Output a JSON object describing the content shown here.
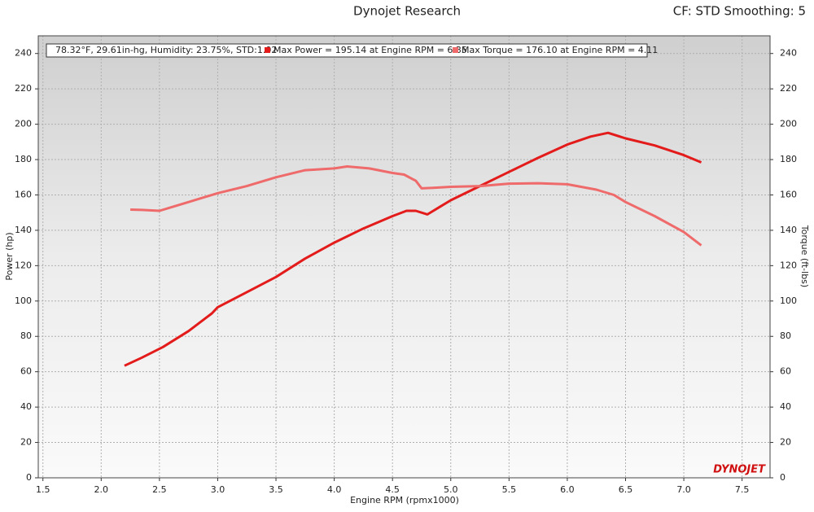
{
  "chart_data": {
    "type": "line",
    "title": "Dynojet Research",
    "subtitle": "CF: STD Smoothing: 5",
    "annotation": "78.32°F, 29.61in-hg, Humidity: 23.75%, STD:1.02",
    "logo": "DYNOJET",
    "x_label": "Engine RPM (rpmx1000)",
    "y_label": "Power (hp)",
    "y2_label": "Torque (ft-lbs)",
    "xlim": [
      1.46,
      7.74
    ],
    "xticks": [
      1.5,
      {
        "value": 2,
        "label": "2.0"
      },
      2.5,
      {
        "value": 3,
        "label": "3.0"
      },
      3.5,
      {
        "value": 4,
        "label": "4.0"
      },
      4.5,
      {
        "value": 5,
        "label": "5.0"
      },
      5.5,
      {
        "value": 6,
        "label": "6.0"
      },
      6.5,
      {
        "value": 7,
        "label": "7.0"
      },
      7.5
    ],
    "ylim": [
      0,
      250
    ],
    "yticks": [
      0,
      20,
      40,
      60,
      80,
      100,
      120,
      140,
      160,
      180,
      200,
      220,
      240
    ],
    "y2lim": [
      0,
      250
    ],
    "y2ticks": [
      0,
      20,
      40,
      60,
      80,
      100,
      120,
      140,
      160,
      180,
      200,
      220,
      240
    ],
    "grid": true,
    "series": [
      {
        "name": "Max Power = 195.14 at Engine RPM = 6.35",
        "color": "#e31b1b",
        "axis": "y",
        "x": [
          2.2,
          2.35,
          2.53,
          2.75,
          2.95,
          3.0,
          3.25,
          3.5,
          3.75,
          4.0,
          4.25,
          4.5,
          4.62,
          4.7,
          4.8,
          4.9,
          5.0,
          5.25,
          5.5,
          5.75,
          6.0,
          6.2,
          6.35,
          6.5,
          6.75,
          7.0,
          7.15
        ],
        "values": [
          63.4,
          68,
          74,
          83,
          93,
          96.5,
          105,
          113.6,
          124,
          133,
          141,
          148,
          151,
          151,
          149,
          153,
          157,
          165,
          173,
          181,
          188.5,
          193,
          195.14,
          192,
          188,
          182.5,
          178.4
        ]
      },
      {
        "name": "Max Torque = 176.10 at Engine RPM = 4.11",
        "color": "#ef6a6a",
        "axis": "y2",
        "x": [
          2.25,
          2.35,
          2.5,
          2.75,
          3.0,
          3.25,
          3.5,
          3.75,
          4.0,
          4.11,
          4.3,
          4.5,
          4.6,
          4.7,
          4.75,
          4.85,
          5.0,
          5.25,
          5.5,
          5.75,
          6.0,
          6.25,
          6.4,
          6.5,
          6.75,
          7.0,
          7.15
        ],
        "values": [
          151.7,
          151.5,
          151,
          156,
          161,
          165,
          170,
          174,
          175,
          176.1,
          175,
          172.4,
          171.5,
          168,
          163.7,
          164,
          164.6,
          165,
          166.4,
          166.6,
          166,
          163,
          160,
          156,
          148,
          139,
          131.5
        ]
      }
    ]
  }
}
